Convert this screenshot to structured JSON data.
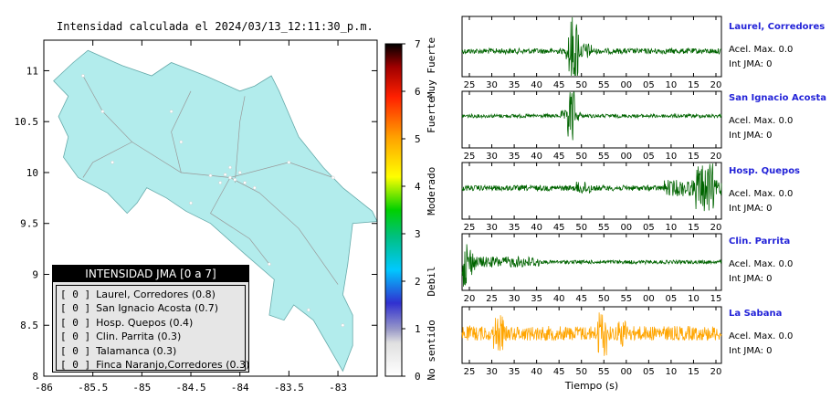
{
  "map": {
    "title": "Intensidad calculada el 2024/03/13_12:11:30_p.m.",
    "x_ticks": [
      "-86",
      "-85.5",
      "-85",
      "-84.5",
      "-84",
      "-83.5",
      "-83"
    ],
    "y_ticks": [
      "11",
      "10.5",
      "10",
      "9.5",
      "9",
      "8.5",
      "8"
    ],
    "land_color": "#b2ecec",
    "sea_color": "#ffffff"
  },
  "scale": {
    "ticks": [
      "0",
      "1",
      "2",
      "3",
      "4",
      "5",
      "6",
      "7"
    ],
    "labels": [
      "No sentido",
      "Debil",
      "Moderado",
      "Fuerte",
      "Muy Fuerte"
    ]
  },
  "legend": {
    "header": "INTENSIDAD JMA [0 a 7]",
    "rows": [
      {
        "bracket": "[ 0 ]",
        "text": "Laurel, Corredores (0.8)"
      },
      {
        "bracket": "[ 0 ]",
        "text": "San Ignacio Acosta (0.7)"
      },
      {
        "bracket": "[ 0 ]",
        "text": "Hosp. Quepos (0.4)"
      },
      {
        "bracket": "[ 0 ]",
        "text": "Clin. Parrita (0.3)"
      },
      {
        "bracket": "[ 0 ]",
        "text": "Talamanca (0.3)"
      },
      {
        "bracket": "[ 0 ]",
        "text": "Finca Naranjo,Corredores (0.3)"
      }
    ]
  },
  "stations": [
    {
      "name": "Laurel, Corredores",
      "accel": "Acel. Max. 0.0",
      "jma": "Int JMA: 0",
      "ticks": [
        "25",
        "30",
        "35",
        "40",
        "45",
        "50",
        "55",
        "00",
        "05",
        "10",
        "15",
        "20"
      ],
      "color": "#006400"
    },
    {
      "name": "San Ignacio Acosta",
      "accel": "Acel. Max. 0.0",
      "jma": "Int JMA: 0",
      "ticks": [
        "25",
        "30",
        "35",
        "40",
        "45",
        "50",
        "55",
        "00",
        "05",
        "10",
        "15",
        "20"
      ],
      "color": "#006400"
    },
    {
      "name": "Hosp. Quepos",
      "accel": "Acel. Max. 0.0",
      "jma": "Int JMA: 0",
      "ticks": [
        "25",
        "30",
        "35",
        "40",
        "45",
        "50",
        "55",
        "00",
        "05",
        "10",
        "15",
        "20"
      ],
      "color": "#006400"
    },
    {
      "name": "Clin. Parrita",
      "accel": "Acel. Max. 0.0",
      "jma": "Int JMA: 0",
      "ticks": [
        "20",
        "25",
        "30",
        "35",
        "40",
        "45",
        "50",
        "55",
        "00",
        "05",
        "10",
        "15"
      ],
      "color": "#006400"
    },
    {
      "name": "La Sabana",
      "accel": "Acel. Max. 0.0",
      "jma": "Int JMA: 0",
      "ticks": [
        "25",
        "30",
        "35",
        "40",
        "45",
        "50",
        "55",
        "00",
        "05",
        "10",
        "15",
        "20"
      ],
      "color": "#ffa500"
    }
  ],
  "x_axis_label": "Tiempo (s)",
  "chart_data": [
    {
      "type": "heatmap",
      "title": "Intensidad calculada el 2024/03/13_12:11:30_p.m.",
      "xlim": [
        -86,
        -82.6
      ],
      "ylim": [
        8,
        11.3
      ],
      "colorbar_range": [
        0,
        7
      ]
    },
    {
      "type": "line",
      "xlabel": "Tiempo (s)",
      "series": [
        {
          "name": "Laurel, Corredores",
          "peak_tick": "50"
        },
        {
          "name": "San Ignacio Acosta",
          "peak_tick": "50"
        },
        {
          "name": "Hosp. Quepos",
          "peak_tick": "15"
        },
        {
          "name": "Clin. Parrita",
          "peak_tick": "20"
        },
        {
          "name": "La Sabana",
          "peak_tick": "55"
        }
      ]
    }
  ]
}
